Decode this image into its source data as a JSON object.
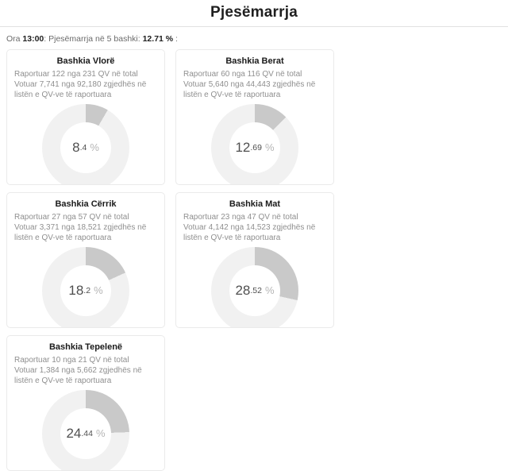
{
  "page": {
    "title": "Pjesëmarrja"
  },
  "status_bar": {
    "prefix": "Ora ",
    "time": "13:00",
    "middle": ": Pjesëmarrja në 5 bashki: ",
    "total_pct": "12.71 %",
    "suffix": " :"
  },
  "colors": {
    "segment": "#c9c9c9",
    "track": "#f1f1f1",
    "card_border": "#eaeaea",
    "header_border": "#e2e2e2",
    "stats_text": "#8f8f8f",
    "pct_text": "#4f4f4f",
    "pct_symbol": "#b5b5b5"
  },
  "cards": [
    {
      "name": "Bashkia Vlorë",
      "reported_line": "Raportuar 122 nga 231 QV në total",
      "voted_line": "Votuar 7,741 nga 92,180 zgjedhës në listën e QV-ve të raportuara",
      "pct_int": "8",
      "pct_dec": ".4",
      "pct_symbol": "%"
    },
    {
      "name": "Bashkia Berat",
      "reported_line": "Raportuar 60 nga 116 QV në total",
      "voted_line": "Votuar 5,640 nga 44,443 zgjedhës në listën e QV-ve të raportuara",
      "pct_int": "12",
      "pct_dec": ".69",
      "pct_symbol": "%"
    },
    {
      "name": "Bashkia Cërrik",
      "reported_line": "Raportuar 27 nga 57 QV në total",
      "voted_line": "Votuar 3,371 nga 18,521 zgjedhës në listën e QV-ve të raportuara",
      "pct_int": "18",
      "pct_dec": ".2",
      "pct_symbol": "%"
    },
    {
      "name": "Bashkia Mat",
      "reported_line": "Raportuar 23 nga 47 QV në total",
      "voted_line": "Votuar 4,142 nga 14,523 zgjedhës në listën e QV-ve të raportuara",
      "pct_int": "28",
      "pct_dec": ".52",
      "pct_symbol": "%"
    },
    {
      "name": "Bashkia Tepelenë",
      "reported_line": "Raportuar 10 nga 21 QV në total",
      "voted_line": "Votuar 1,384 nga 5,662 zgjedhës në listën e QV-ve të raportuara",
      "pct_int": "24",
      "pct_dec": ".44",
      "pct_symbol": "%"
    }
  ],
  "chart_data": [
    {
      "type": "pie",
      "donut": true,
      "title": "Bashkia Vlorë",
      "value_pct": 8.4,
      "remainder_pct": 91.6,
      "center_label": "8.4 %",
      "reported_qv": 122,
      "total_qv": 231,
      "voters_voted": 7741,
      "voters_listed": 92180,
      "legend": "off",
      "start_angle_deg": 0,
      "direction": "clockwise"
    },
    {
      "type": "pie",
      "donut": true,
      "title": "Bashkia Berat",
      "value_pct": 12.69,
      "remainder_pct": 87.31,
      "center_label": "12.69 %",
      "reported_qv": 60,
      "total_qv": 116,
      "voters_voted": 5640,
      "voters_listed": 44443,
      "legend": "off",
      "start_angle_deg": 0,
      "direction": "clockwise"
    },
    {
      "type": "pie",
      "donut": true,
      "title": "Bashkia Cërrik",
      "value_pct": 18.2,
      "remainder_pct": 81.8,
      "center_label": "18.2 %",
      "reported_qv": 27,
      "total_qv": 57,
      "voters_voted": 3371,
      "voters_listed": 18521,
      "legend": "off",
      "start_angle_deg": 0,
      "direction": "clockwise"
    },
    {
      "type": "pie",
      "donut": true,
      "title": "Bashkia Mat",
      "value_pct": 28.52,
      "remainder_pct": 71.48,
      "center_label": "28.52 %",
      "reported_qv": 23,
      "total_qv": 47,
      "voters_voted": 4142,
      "voters_listed": 14523,
      "legend": "off",
      "start_angle_deg": 0,
      "direction": "clockwise"
    },
    {
      "type": "pie",
      "donut": true,
      "title": "Bashkia Tepelenë",
      "value_pct": 24.44,
      "remainder_pct": 75.56,
      "center_label": "24.44 %",
      "reported_qv": 10,
      "total_qv": 21,
      "voters_voted": 1384,
      "voters_listed": 5662,
      "legend": "off",
      "start_angle_deg": 0,
      "direction": "clockwise"
    }
  ]
}
